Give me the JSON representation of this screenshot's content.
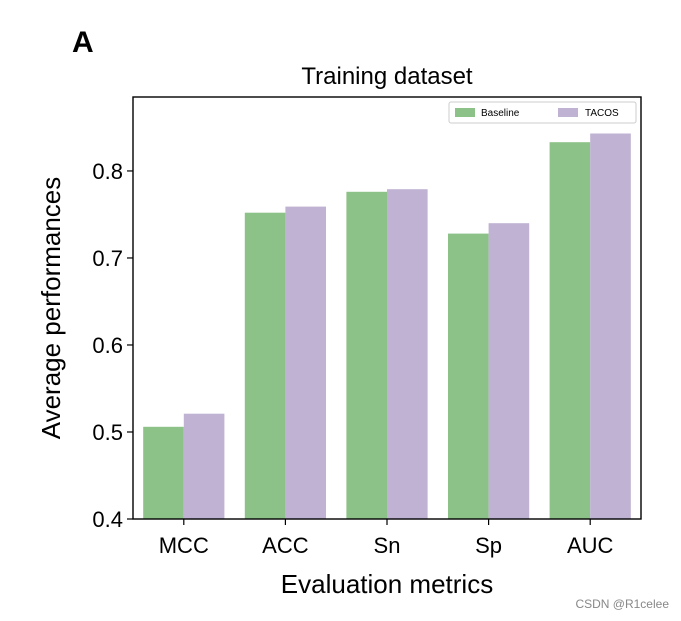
{
  "panel_label": "A",
  "watermark": "CSDN @R1celee",
  "colors": {
    "baseline": "#8cc287",
    "tacos": "#bfb2d2",
    "axis": "#000000"
  },
  "chart_data": {
    "type": "bar",
    "title": "Training dataset",
    "xlabel": "Evaluation metrics",
    "ylabel": "Average performances",
    "categories": [
      "MCC",
      "ACC",
      "Sn",
      "Sp",
      "AUC"
    ],
    "ylim": [
      0.4,
      0.885
    ],
    "yticks": [
      0.4,
      0.5,
      0.6,
      0.7,
      0.8
    ],
    "ytick_labels": [
      "0.4",
      "0.5",
      "0.6",
      "0.7",
      "0.8"
    ],
    "legend_position": "top-right",
    "series": [
      {
        "name": "Baseline",
        "values": [
          0.506,
          0.752,
          0.776,
          0.728,
          0.833
        ]
      },
      {
        "name": "TACOS",
        "values": [
          0.521,
          0.759,
          0.779,
          0.74,
          0.843
        ]
      }
    ]
  }
}
